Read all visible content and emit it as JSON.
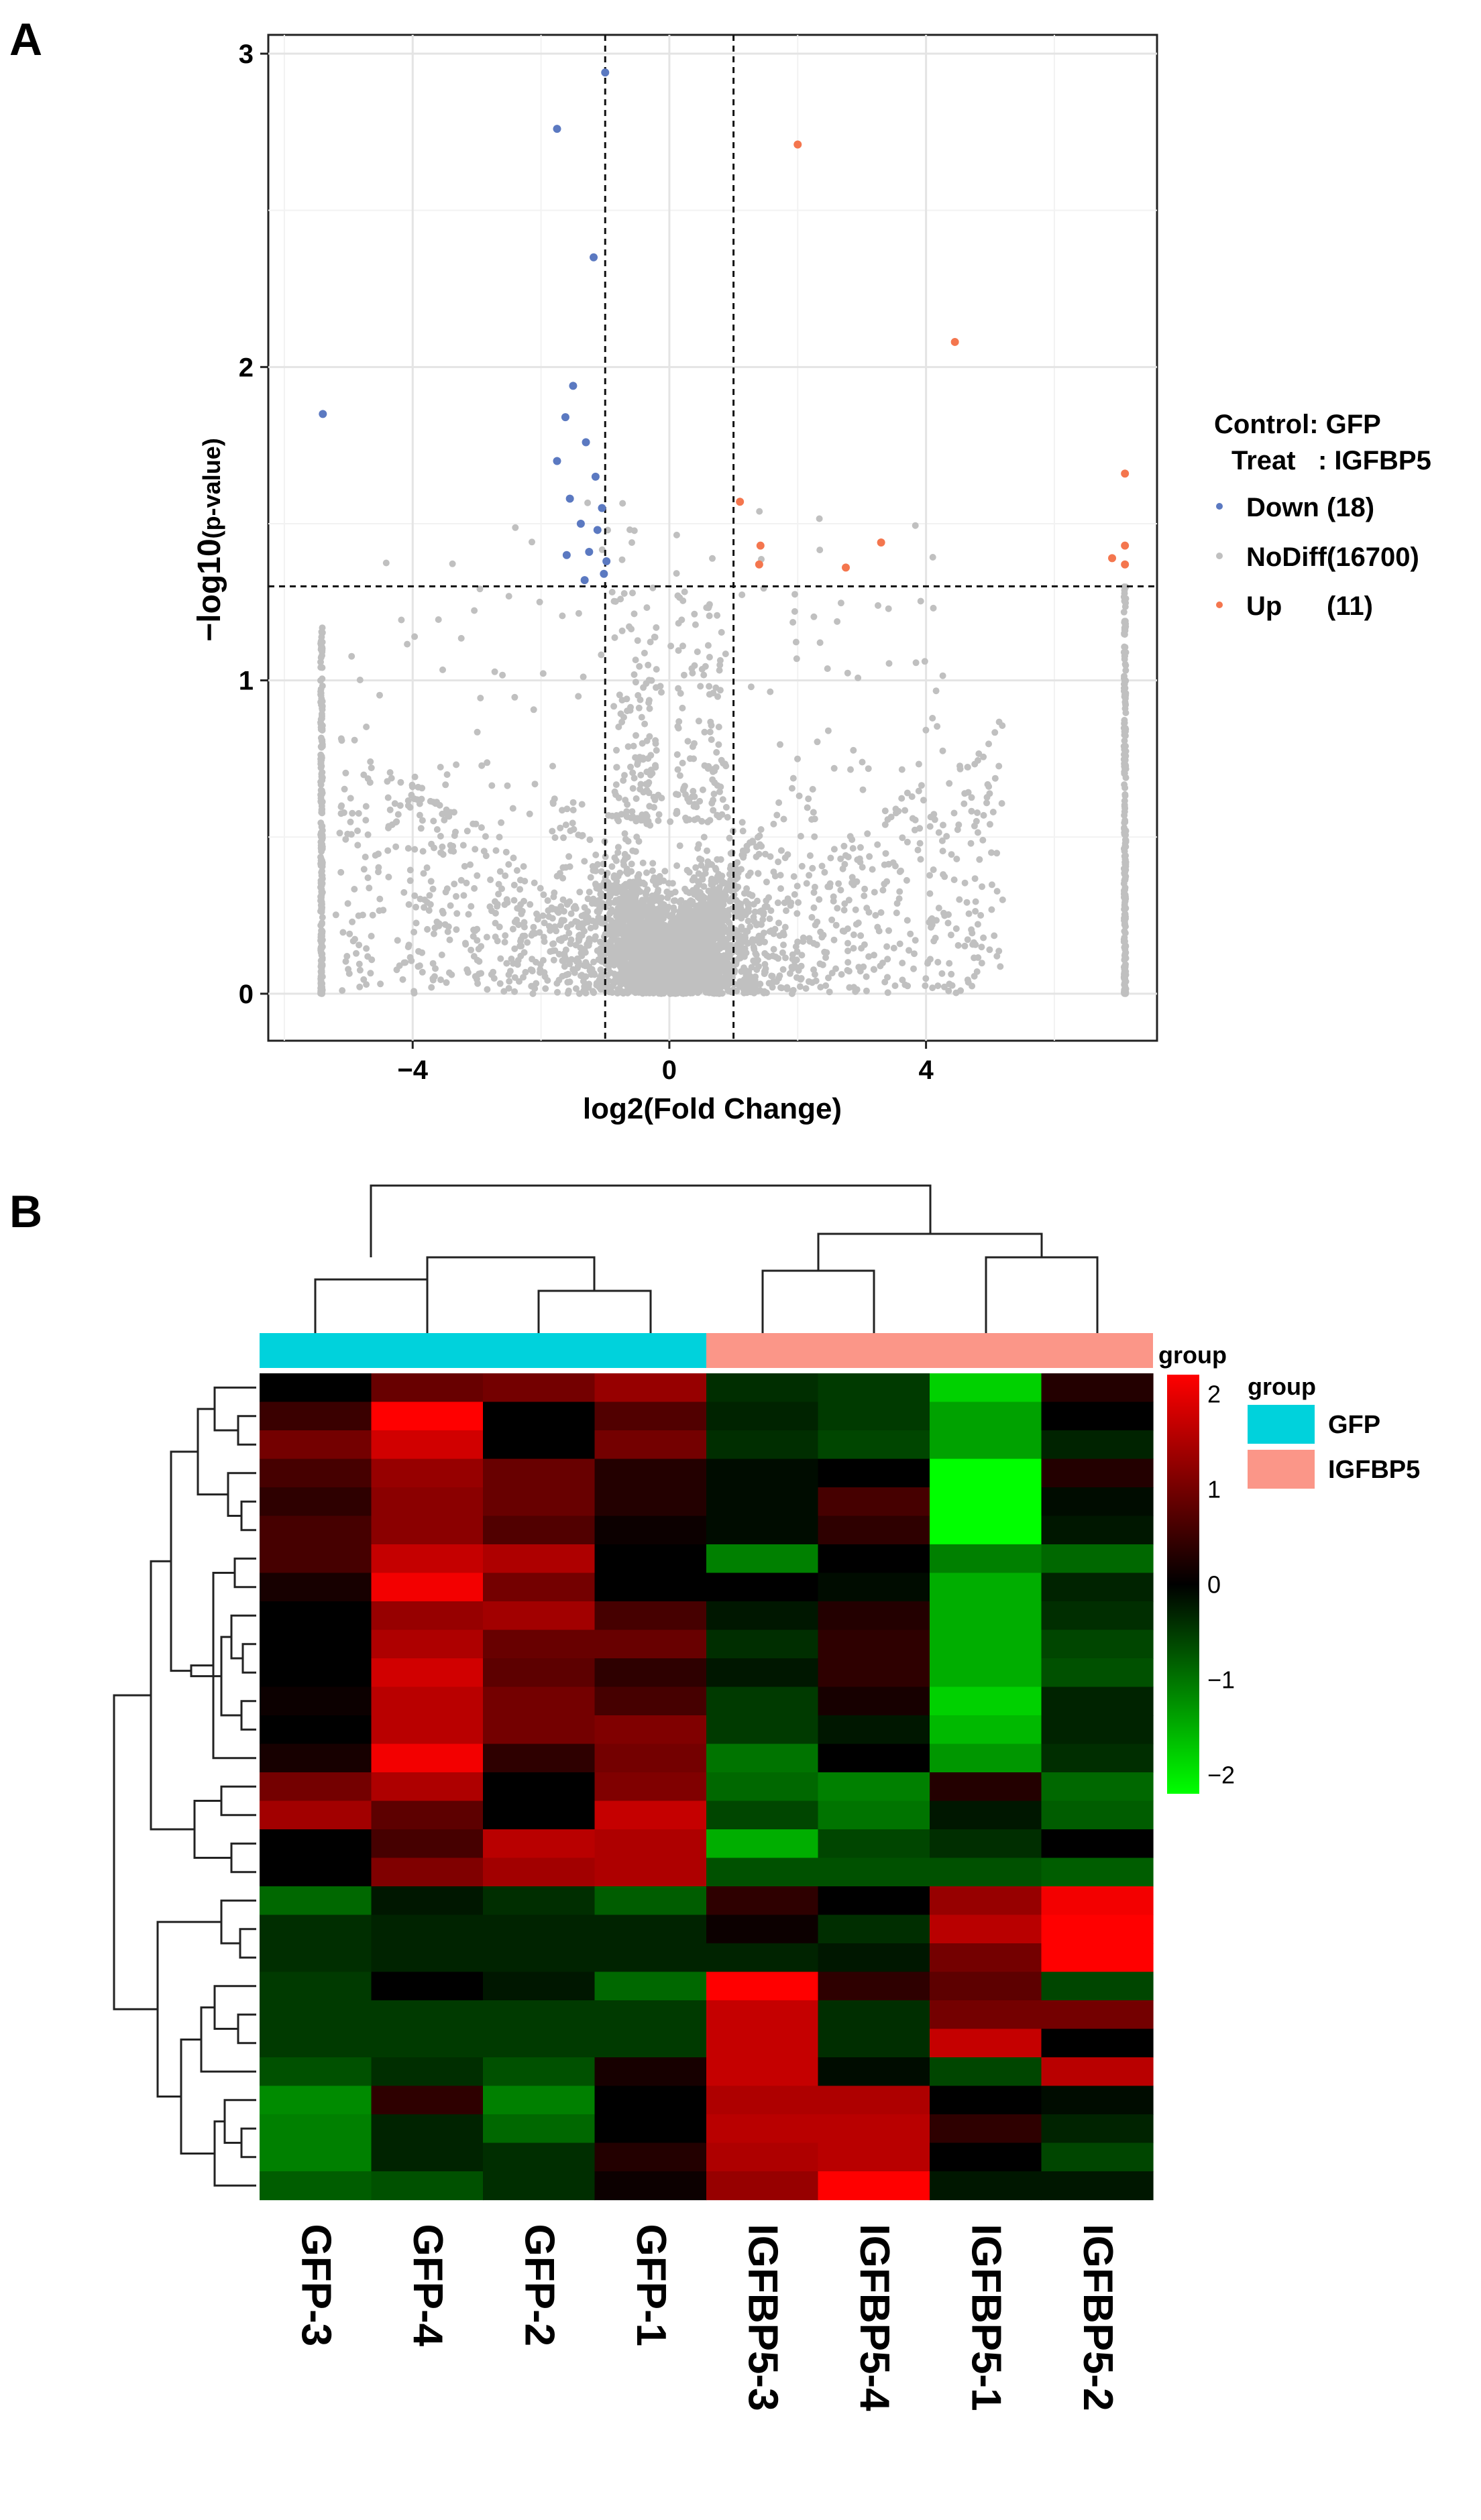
{
  "panelA": {
    "label": "A",
    "chart_data": {
      "type": "scatter",
      "xlabel": "log2(Fold Change)",
      "ylabel_main": "−log10",
      "ylabel_sub": "(p-value)",
      "xlim": [
        -6.25,
        7.6
      ],
      "ylim": [
        -0.15,
        3.06
      ],
      "xticks": [
        -4,
        0,
        4
      ],
      "xtick_labels": [
        "−4",
        "0",
        "4"
      ],
      "yticks": [
        0,
        1,
        2,
        3
      ],
      "ytick_labels": [
        "0",
        "1",
        "2",
        "3"
      ],
      "fc_thresholds": [
        -1,
        1
      ],
      "p_threshold": 1.3,
      "grid": true,
      "legend": {
        "header_line1": "Control: GFP",
        "header_line2": "Treat   : IGFBP5",
        "entries": [
          {
            "label": "Down (18)",
            "color": "#5b79c1"
          },
          {
            "label": "NoDiff(16700)",
            "color": "#c0c0c0"
          },
          {
            "label": "Up      (11)",
            "color": "#f4764e"
          }
        ]
      },
      "series": [
        {
          "name": "Down",
          "color": "#5b79c1",
          "points": [
            [
              -1.0,
              2.94
            ],
            [
              -1.75,
              2.76
            ],
            [
              -1.18,
              2.35
            ],
            [
              -1.5,
              1.94
            ],
            [
              -1.62,
              1.84
            ],
            [
              -1.3,
              1.76
            ],
            [
              -5.4,
              1.85
            ],
            [
              -1.75,
              1.7
            ],
            [
              -1.15,
              1.65
            ],
            [
              -1.55,
              1.58
            ],
            [
              -1.05,
              1.55
            ],
            [
              -1.38,
              1.5
            ],
            [
              -1.12,
              1.48
            ],
            [
              -1.25,
              1.41
            ],
            [
              -1.6,
              1.4
            ],
            [
              -0.98,
              1.38
            ],
            [
              -1.02,
              1.34
            ],
            [
              -1.32,
              1.32
            ]
          ]
        },
        {
          "name": "Up",
          "color": "#f4764e",
          "points": [
            [
              2.0,
              2.71
            ],
            [
              4.45,
              2.08
            ],
            [
              7.1,
              1.66
            ],
            [
              1.1,
              1.57
            ],
            [
              1.42,
              1.43
            ],
            [
              3.3,
              1.44
            ],
            [
              1.4,
              1.37
            ],
            [
              2.75,
              1.36
            ],
            [
              6.9,
              1.39
            ],
            [
              7.1,
              1.43
            ],
            [
              7.1,
              1.37
            ]
          ]
        }
      ]
    }
  },
  "panelB": {
    "label": "B",
    "chart_data": {
      "type": "heatmap",
      "columns": [
        "GFP-3",
        "GFP-4",
        "GFP-2",
        "GFP-1",
        "IGFBP5-3",
        "IGFBP5-4",
        "IGFBP5-1",
        "IGFBP5-2"
      ],
      "column_groups": [
        "GFP",
        "GFP",
        "GFP",
        "GFP",
        "IGFBP5",
        "IGFBP5",
        "IGFBP5",
        "IGFBP5"
      ],
      "group_colors": {
        "GFP": "#00d2dc",
        "IGFBP5": "#fb9688"
      },
      "legend_title": "group",
      "group_legend_title": "group",
      "group_legend_labels": [
        "GFP",
        "IGFBP5"
      ],
      "colorscale": {
        "low": -2.2,
        "high": 2.2,
        "min_color": "#00ff00",
        "mid_color": "#000000",
        "max_color": "#ff0000"
      },
      "colorbar_ticks": [
        2,
        1,
        0,
        -1,
        -2
      ],
      "colorbar_tick_labels": [
        "2",
        "1",
        "0",
        "−1",
        "−2"
      ],
      "values": [
        [
          0.0,
          0.9,
          1.0,
          1.3,
          -0.4,
          -0.5,
          -1.8,
          0.3
        ],
        [
          0.5,
          2.2,
          0.0,
          0.7,
          -0.3,
          -0.5,
          -1.4,
          0.0
        ],
        [
          1.0,
          1.8,
          0.0,
          1.0,
          -0.4,
          -0.6,
          -1.4,
          -0.3
        ],
        [
          0.6,
          1.3,
          0.9,
          0.3,
          -0.1,
          0.0,
          -2.2,
          0.3
        ],
        [
          0.4,
          1.2,
          0.9,
          0.3,
          -0.1,
          0.6,
          -2.2,
          -0.1
        ],
        [
          0.6,
          1.2,
          0.7,
          0.1,
          -0.1,
          0.4,
          -2.2,
          -0.2
        ],
        [
          0.6,
          1.7,
          1.5,
          0.0,
          -1.1,
          0.0,
          -1.1,
          -0.9
        ],
        [
          0.2,
          2.1,
          1.0,
          0.0,
          0.0,
          -0.1,
          -1.5,
          -0.3
        ],
        [
          0.0,
          1.3,
          1.4,
          0.6,
          -0.2,
          0.3,
          -1.5,
          -0.4
        ],
        [
          0.0,
          1.5,
          0.9,
          0.9,
          -0.4,
          0.4,
          -1.5,
          -0.6
        ],
        [
          0.0,
          1.8,
          0.8,
          0.4,
          -0.2,
          0.4,
          -1.5,
          -0.7
        ],
        [
          0.1,
          1.6,
          1.0,
          0.6,
          -0.5,
          0.2,
          -1.8,
          -0.3
        ],
        [
          0.0,
          1.6,
          1.0,
          1.1,
          -0.5,
          -0.2,
          -1.6,
          -0.3
        ],
        [
          0.2,
          2.1,
          0.4,
          1.0,
          -1.0,
          0.0,
          -1.3,
          -0.4
        ],
        [
          1.0,
          1.5,
          0.0,
          1.1,
          -0.9,
          -1.1,
          0.3,
          -0.9
        ],
        [
          1.4,
          0.8,
          0.0,
          1.7,
          -0.6,
          -1.0,
          -0.2,
          -0.8
        ],
        [
          0.0,
          0.6,
          1.6,
          1.5,
          -1.5,
          -0.6,
          -0.4,
          0.0
        ],
        [
          0.0,
          1.1,
          1.4,
          1.5,
          -0.7,
          -0.7,
          -0.7,
          -0.8
        ],
        [
          -0.9,
          -0.2,
          -0.4,
          -0.8,
          0.4,
          0.0,
          1.3,
          2.1
        ],
        [
          -0.4,
          -0.3,
          -0.3,
          -0.3,
          0.1,
          -0.4,
          1.6,
          2.2
        ],
        [
          -0.4,
          -0.3,
          -0.3,
          -0.3,
          -0.3,
          -0.2,
          1.0,
          2.2
        ],
        [
          -0.5,
          0.0,
          -0.2,
          -0.9,
          2.2,
          0.4,
          0.8,
          -0.6
        ],
        [
          -0.5,
          -0.5,
          -0.5,
          -0.5,
          1.7,
          -0.4,
          1.0,
          1.0
        ],
        [
          -0.5,
          -0.5,
          -0.5,
          -0.5,
          1.7,
          -0.4,
          1.7,
          0.0
        ],
        [
          -0.7,
          -0.4,
          -0.7,
          0.2,
          1.7,
          -0.1,
          -0.6,
          1.6
        ],
        [
          -1.2,
          0.4,
          -1.1,
          0.0,
          1.5,
          1.5,
          0.0,
          -0.1
        ],
        [
          -1.1,
          -0.3,
          -0.9,
          0.0,
          1.6,
          1.6,
          0.4,
          -0.3
        ],
        [
          -1.1,
          -0.3,
          -0.4,
          0.3,
          1.5,
          1.6,
          0.0,
          -0.6
        ],
        [
          -0.8,
          -0.7,
          -0.4,
          0.1,
          1.3,
          2.2,
          -0.2,
          -0.2
        ]
      ]
    }
  }
}
